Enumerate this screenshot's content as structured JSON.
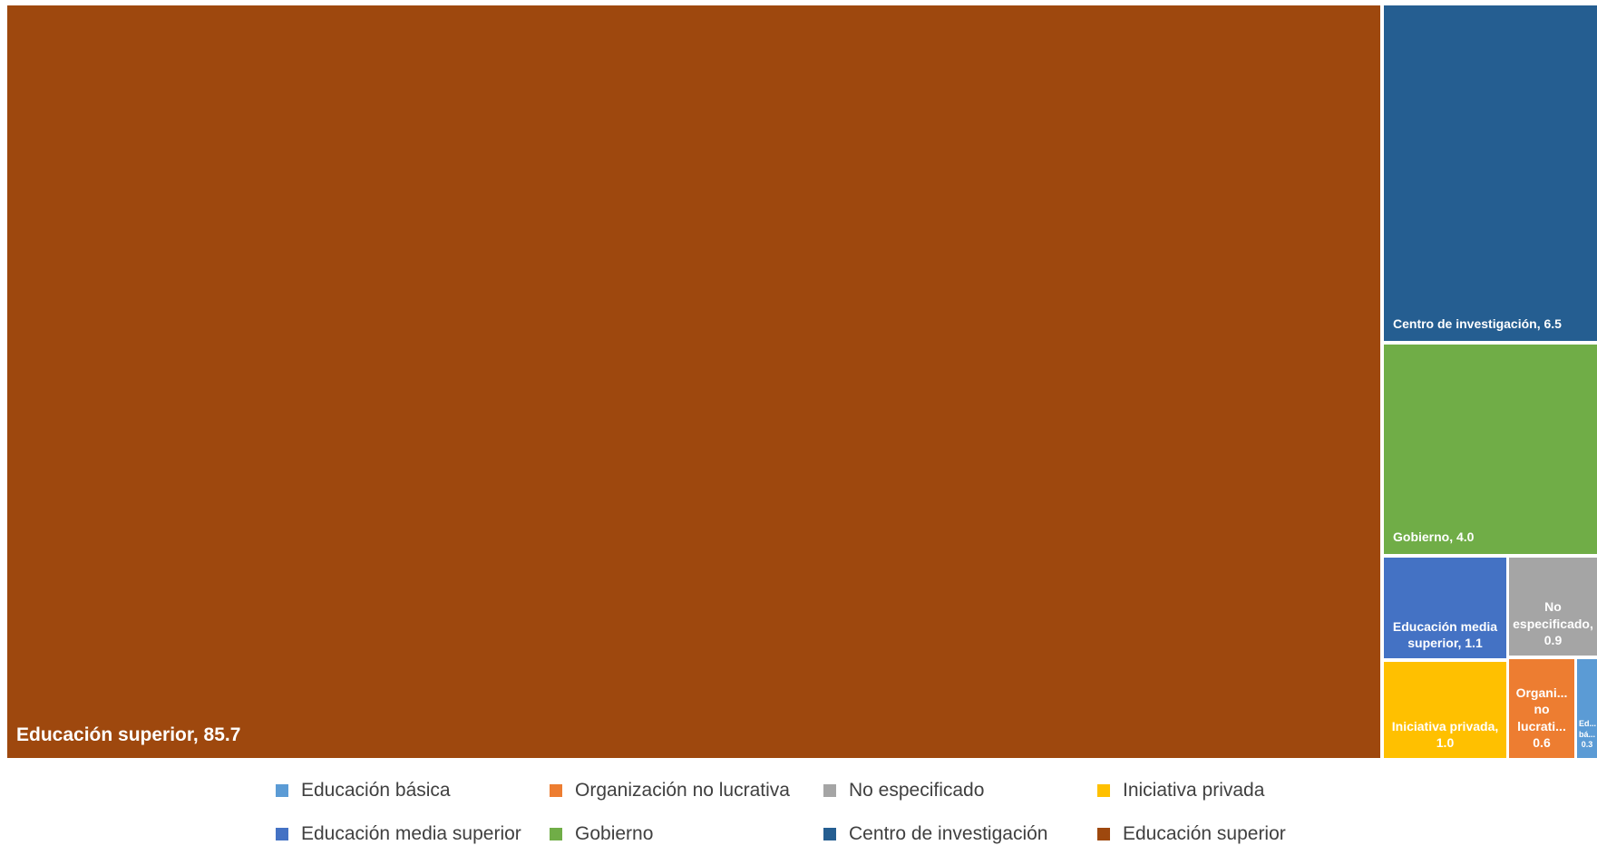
{
  "chart_data": {
    "type": "treemap",
    "title": "",
    "series": [
      {
        "name": "Educación superior",
        "value": 85.7,
        "label": "Educación superior, 85.7",
        "color": "#9E480E"
      },
      {
        "name": "Centro de investigación",
        "value": 6.5,
        "label": "Centro de investigación, 6.5",
        "color": "#255E91"
      },
      {
        "name": "Gobierno",
        "value": 4.0,
        "label": "Gobierno, 4.0",
        "color": "#70AD47"
      },
      {
        "name": "Educación media superior",
        "value": 1.1,
        "label": "Educación media superior, 1.1",
        "color": "#4472C4"
      },
      {
        "name": "No especificado",
        "value": 0.9,
        "label": "No especificado, 0.9",
        "color": "#A5A5A5"
      },
      {
        "name": "Iniciativa privada",
        "value": 1.0,
        "label": "Iniciativa privada, 1.0",
        "color": "#FFC000"
      },
      {
        "name": "Organización no lucrativa",
        "value": 0.6,
        "label": "Organi... no lucrati... 0.6",
        "color": "#ED7D31"
      },
      {
        "name": "Educación básica",
        "value": 0.3,
        "label": "Ed... bá... 0.3",
        "color": "#5B9BD5"
      }
    ],
    "legend": {
      "placement": "bottom",
      "items": [
        {
          "label": "Educación básica",
          "color": "#5B9BD5"
        },
        {
          "label": "Organización no lucrativa",
          "color": "#ED7D31"
        },
        {
          "label": "No especificado",
          "color": "#A5A5A5"
        },
        {
          "label": "Iniciativa privada",
          "color": "#FFC000"
        },
        {
          "label": "Educación media superior",
          "color": "#4472C4"
        },
        {
          "label": "Gobierno",
          "color": "#70AD47"
        },
        {
          "label": "Centro de investigación",
          "color": "#255E91"
        },
        {
          "label": "Educación superior",
          "color": "#9E480E"
        }
      ]
    }
  }
}
